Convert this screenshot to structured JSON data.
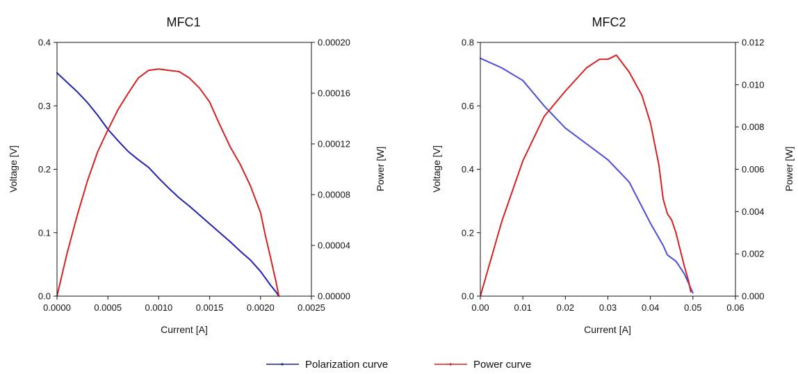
{
  "chart_data": [
    {
      "type": "line",
      "title": "MFC1",
      "xlabel": "Current [A]",
      "ylabel": "Voltage [V]",
      "y2label": "Power [W]",
      "xlim": [
        0,
        0.0025
      ],
      "ylim": [
        0,
        0.4
      ],
      "y2lim": [
        0,
        0.0002
      ],
      "xticks": [
        "0.0000",
        "0.0005",
        "0.0010",
        "0.0015",
        "0.0020",
        "0.0025"
      ],
      "yticks": [
        "0.0",
        "0.1",
        "0.2",
        "0.3",
        "0.4"
      ],
      "y2ticks": [
        "0.00000",
        "0.00004",
        "0.00008",
        "0.00012",
        "0.00016",
        "0.00020"
      ],
      "series": [
        {
          "name": "Polarization curve",
          "axis": "left",
          "color": "#1f1fb4",
          "x": [
            0,
            0.0001,
            0.0002,
            0.0003,
            0.0004,
            0.0005,
            0.0006,
            0.0007,
            0.0008,
            0.0009,
            0.001,
            0.0011,
            0.0012,
            0.0013,
            0.0014,
            0.0015,
            0.0016,
            0.0017,
            0.0018,
            0.0019,
            0.002,
            0.00205,
            0.0021,
            0.00215,
            0.00218
          ],
          "y": [
            0.352,
            0.337,
            0.322,
            0.305,
            0.285,
            0.263,
            0.245,
            0.228,
            0.215,
            0.203,
            0.186,
            0.17,
            0.155,
            0.142,
            0.128,
            0.114,
            0.1,
            0.086,
            0.071,
            0.057,
            0.039,
            0.028,
            0.017,
            0.007,
            0.0
          ]
        },
        {
          "name": "Power curve",
          "axis": "right",
          "color": "#d42020",
          "x": [
            0,
            0.0001,
            0.0002,
            0.0003,
            0.0004,
            0.0005,
            0.0006,
            0.0007,
            0.0008,
            0.0009,
            0.001,
            0.0011,
            0.0012,
            0.0013,
            0.0014,
            0.0015,
            0.0016,
            0.0017,
            0.0018,
            0.0019,
            0.002,
            0.00205,
            0.0021,
            0.00215,
            0.00218
          ],
          "y": [
            0.0,
            3.4e-05,
            6.4e-05,
            9.1e-05,
            0.000114,
            0.000131,
            0.000147,
            0.00016,
            0.000172,
            0.000178,
            0.000179,
            0.000178,
            0.000177,
            0.000172,
            0.000164,
            0.000153,
            0.000135,
            0.000118,
            0.000104,
            8.7e-05,
            6.6e-05,
            4.7e-05,
            3e-05,
            1.2e-05,
            0.0
          ]
        }
      ]
    },
    {
      "type": "line",
      "title": "MFC2",
      "xlabel": "Current [A]",
      "ylabel": "Voltage [V]",
      "y2label": "Power [W]",
      "xlim": [
        0,
        0.06
      ],
      "ylim": [
        0,
        0.8
      ],
      "y2lim": [
        0,
        0.012
      ],
      "xticks": [
        "0.00",
        "0.01",
        "0.02",
        "0.03",
        "0.04",
        "0.05",
        "0.06"
      ],
      "yticks": [
        "0.0",
        "0.2",
        "0.4",
        "0.6",
        "0.8"
      ],
      "y2ticks": [
        "0.000",
        "0.002",
        "0.004",
        "0.006",
        "0.008",
        "0.010",
        "0.012"
      ],
      "series": [
        {
          "name": "Polarization curve",
          "axis": "left",
          "color": "#4a4adc",
          "x": [
            0,
            0.005,
            0.01,
            0.015,
            0.02,
            0.025,
            0.03,
            0.035,
            0.04,
            0.043,
            0.044,
            0.045,
            0.046,
            0.047,
            0.048,
            0.049,
            0.05
          ],
          "y": [
            0.75,
            0.72,
            0.68,
            0.6,
            0.53,
            0.48,
            0.43,
            0.36,
            0.23,
            0.16,
            0.13,
            0.12,
            0.11,
            0.09,
            0.07,
            0.04,
            0.01
          ]
        },
        {
          "name": "Power curve",
          "axis": "right",
          "color": "#d42020",
          "x": [
            0,
            0.005,
            0.01,
            0.015,
            0.02,
            0.025,
            0.028,
            0.03,
            0.032,
            0.035,
            0.038,
            0.04,
            0.042,
            0.043,
            0.044,
            0.045,
            0.046,
            0.047,
            0.048,
            0.049,
            0.0495
          ],
          "y": [
            0.0,
            0.0035,
            0.0064,
            0.0085,
            0.0097,
            0.0108,
            0.0112,
            0.0112,
            0.0114,
            0.0106,
            0.0095,
            0.0082,
            0.0062,
            0.0046,
            0.0039,
            0.0036,
            0.003,
            0.0022,
            0.0014,
            0.0007,
            0.0002
          ]
        }
      ]
    }
  ],
  "legend": {
    "items": [
      {
        "label": "Polarization curve",
        "color": "#1f1f8a"
      },
      {
        "label": "Power curve",
        "color": "#d42020"
      }
    ]
  }
}
